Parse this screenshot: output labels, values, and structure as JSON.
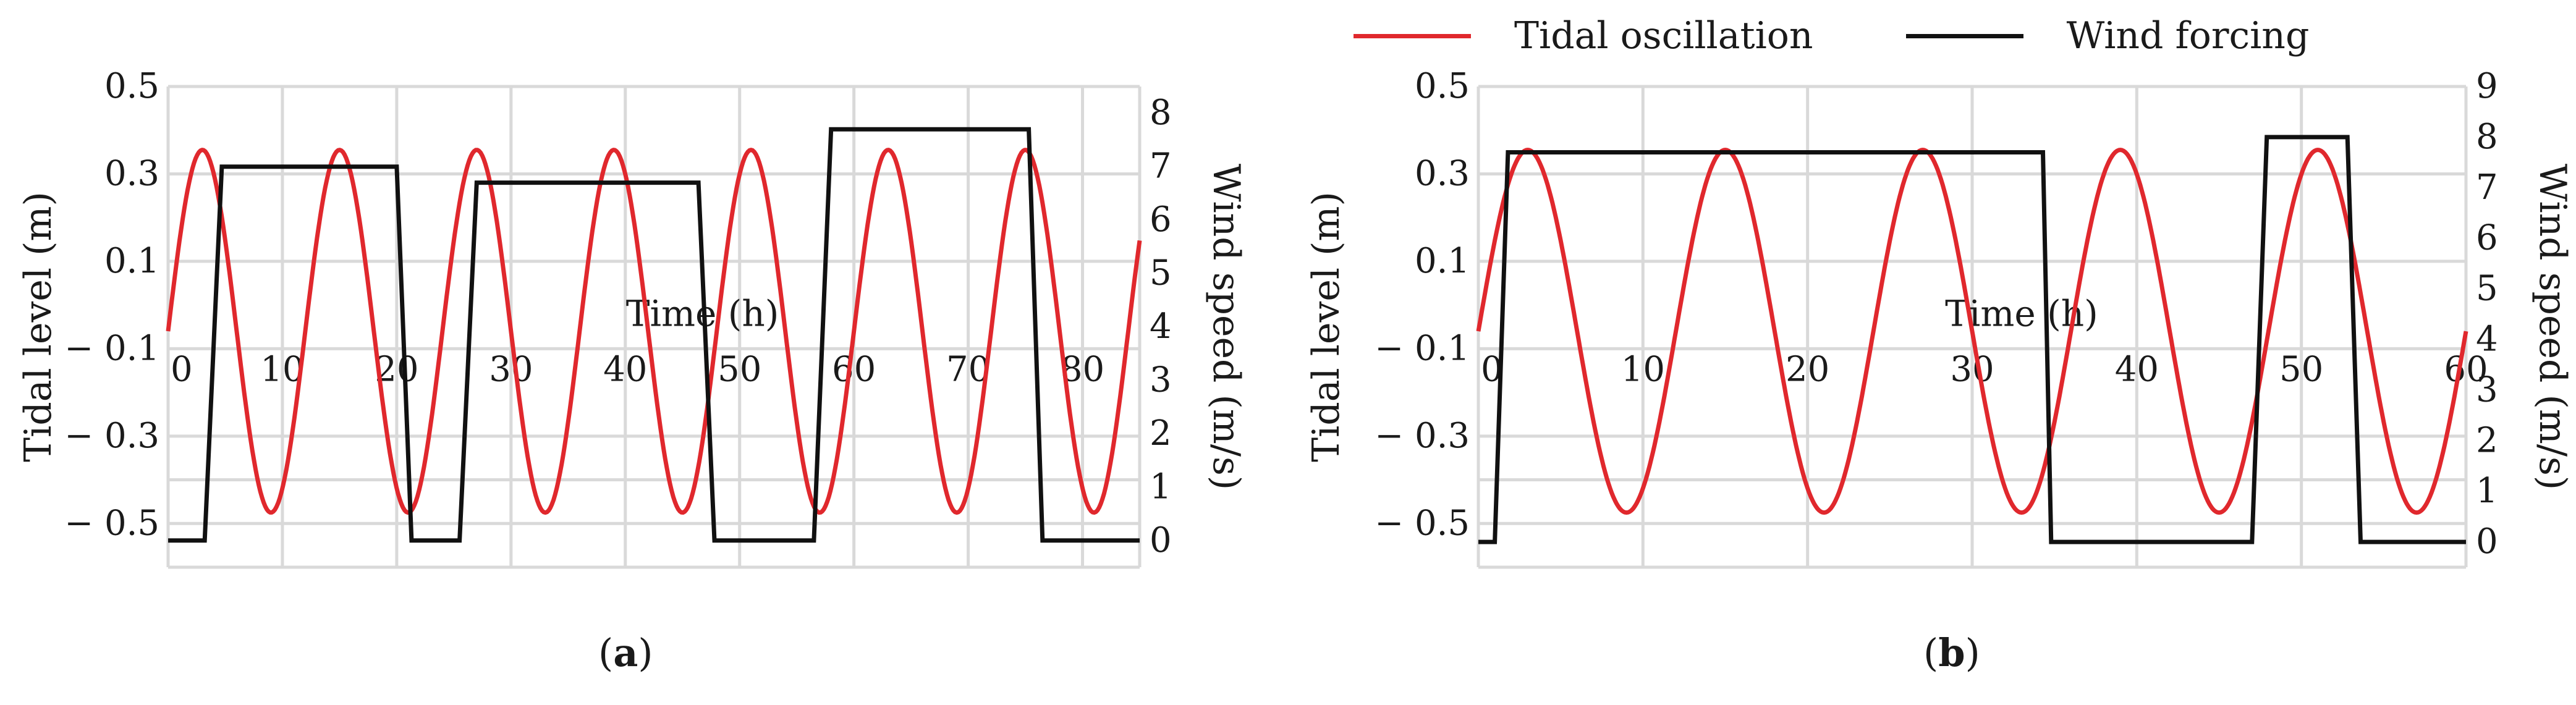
{
  "legend": {
    "tidal_label": "Tidal oscillation",
    "wind_label": "Wind forcing",
    "tidal_color": "#e0282d",
    "wind_color": "#111111"
  },
  "captions": {
    "a": {
      "open": "(",
      "letter": "a",
      "close": ")"
    },
    "b": {
      "open": "(",
      "letter": "b",
      "close": ")"
    }
  },
  "chart_data": [
    {
      "id": "a",
      "type": "line",
      "x_label": "Time (h)",
      "y_left_label": "Tidal level (m)",
      "y_right_label": "Wind speed (m/s)",
      "xlim": [
        0,
        85
      ],
      "x_ticks": [
        0,
        10,
        20,
        30,
        40,
        50,
        60,
        70,
        80
      ],
      "y_left_lim": [
        -0.6,
        0.5
      ],
      "y_left_ticks": [
        -0.5,
        -0.3,
        -0.1,
        0.1,
        0.3,
        0.5
      ],
      "y_left_tick_labels": [
        "− 0.5",
        "− 0.3",
        "− 0.1",
        "0.1",
        "0.3",
        "0.5"
      ],
      "y_right_lim": [
        -0.5,
        8.5
      ],
      "y_right_ticks": [
        0,
        1,
        2,
        3,
        4,
        5,
        6,
        7,
        8
      ],
      "grid": true,
      "series": [
        {
          "name": "Tidal oscillation",
          "axis": "left",
          "model": "sine",
          "mean": -0.06,
          "amplitude": 0.415,
          "period_h": 12,
          "x_range": [
            0,
            85
          ]
        },
        {
          "name": "Wind forcing",
          "axis": "right",
          "x": [
            0,
            3.2,
            4.7,
            20.0,
            21.3,
            25.5,
            27.0,
            46.4,
            47.8,
            56.5,
            58.0,
            75.3,
            76.5,
            85
          ],
          "y": [
            0,
            0,
            7.0,
            7.0,
            0,
            0,
            6.7,
            6.7,
            0,
            0,
            7.7,
            7.7,
            0,
            0
          ]
        }
      ]
    },
    {
      "id": "b",
      "type": "line",
      "x_label": "Time (h)",
      "y_left_label": "Tidal level (m)",
      "y_right_label": "Wind speed (m/s)",
      "xlim": [
        0,
        60
      ],
      "x_ticks": [
        0,
        10,
        20,
        30,
        40,
        50,
        60
      ],
      "y_left_lim": [
        -0.6,
        0.5
      ],
      "y_left_ticks": [
        -0.5,
        -0.3,
        -0.1,
        0.1,
        0.3,
        0.5
      ],
      "y_left_tick_labels": [
        "− 0.5",
        "− 0.3",
        "− 0.1",
        "0.1",
        "0.3",
        "0.5"
      ],
      "y_right_lim": [
        -0.5,
        9.0
      ],
      "y_right_ticks": [
        0,
        1,
        2,
        3,
        4,
        5,
        6,
        7,
        8,
        9
      ],
      "grid": true,
      "series": [
        {
          "name": "Tidal oscillation",
          "axis": "left",
          "model": "sine",
          "mean": -0.06,
          "amplitude": 0.415,
          "period_h": 12,
          "x_range": [
            0,
            60
          ]
        },
        {
          "name": "Wind forcing",
          "axis": "right",
          "x": [
            0,
            1.0,
            1.8,
            34.3,
            34.8,
            47.0,
            47.9,
            52.8,
            53.6,
            60
          ],
          "y": [
            0,
            0,
            7.7,
            7.7,
            0,
            0,
            8.0,
            8.0,
            0,
            0
          ]
        }
      ]
    }
  ]
}
